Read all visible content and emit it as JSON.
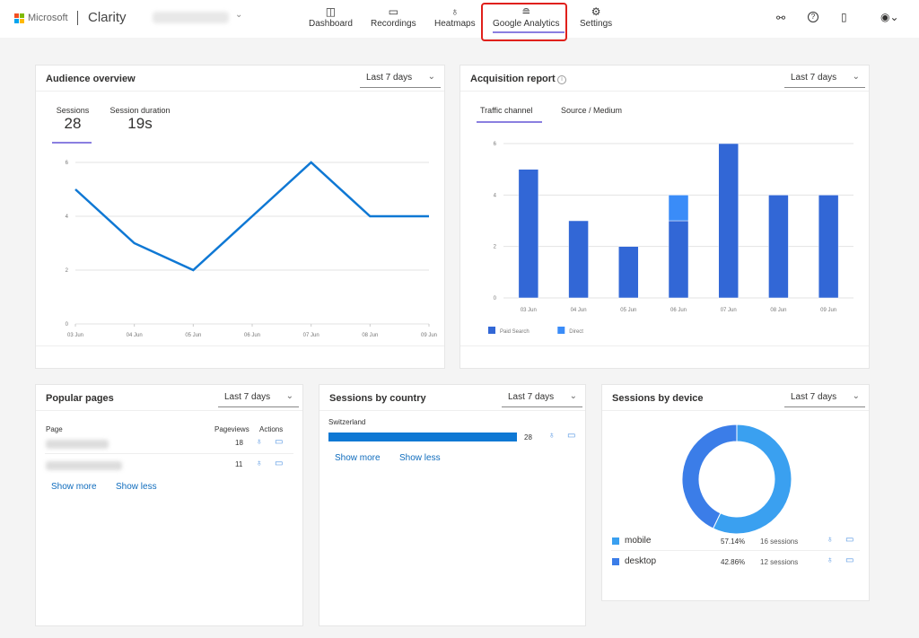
{
  "header": {
    "brand": "Microsoft",
    "product": "Clarity",
    "nav": [
      {
        "label": "Dashboard",
        "icon": "dashboard-icon"
      },
      {
        "label": "Recordings",
        "icon": "video-icon"
      },
      {
        "label": "Heatmaps",
        "icon": "flame-icon"
      },
      {
        "label": "Google Analytics",
        "icon": "stack-icon",
        "active": true
      },
      {
        "label": "Settings",
        "icon": "gear-icon"
      }
    ],
    "right_icons": [
      "share-icon",
      "help-icon",
      "document-icon",
      "account-icon"
    ]
  },
  "audience": {
    "title": "Audience overview",
    "range": "Last 7 days",
    "tabs": [
      {
        "label": "Sessions",
        "value": "28"
      },
      {
        "label": "Session duration",
        "value": "19s"
      }
    ]
  },
  "acquisition": {
    "title": "Acquisition report",
    "range": "Last 7 days",
    "tabs": [
      "Traffic channel",
      "Source / Medium"
    ]
  },
  "popular": {
    "title": "Popular pages",
    "range": "Last 7 days",
    "headers": [
      "Page",
      "Pageviews",
      "Actions"
    ],
    "rows": [
      {
        "views": "18"
      },
      {
        "views": "11"
      }
    ],
    "show_more": "Show more",
    "show_less": "Show less"
  },
  "country": {
    "title": "Sessions by country",
    "range": "Last 7 days",
    "rows": [
      {
        "name": "Switzerland",
        "value": "28"
      }
    ],
    "show_more": "Show more",
    "show_less": "Show less"
  },
  "device": {
    "title": "Sessions by device",
    "range": "Last 7 days",
    "rows": [
      {
        "name": "mobile",
        "pct": "57.14%",
        "sessions": "16 sessions",
        "color": "#3aa0f0"
      },
      {
        "name": "desktop",
        "pct": "42.86%",
        "sessions": "12 sessions",
        "color": "#3b7de8"
      }
    ]
  },
  "chart_data": [
    {
      "type": "line",
      "categories": [
        "03 Jun",
        "04 Jun",
        "05 Jun",
        "06 Jun",
        "07 Jun",
        "08 Jun",
        "09 Jun"
      ],
      "values": [
        5,
        3,
        2,
        4,
        6,
        4,
        4
      ],
      "ylim": [
        0,
        6
      ],
      "yticks": [
        "0",
        "2",
        "4",
        "6"
      ],
      "grid": true,
      "color": "#0f78d4"
    },
    {
      "type": "bar",
      "stacked": true,
      "categories": [
        "03 Jun",
        "04 Jun",
        "05 Jun",
        "06 Jun",
        "07 Jun",
        "08 Jun",
        "09 Jun"
      ],
      "series": [
        {
          "name": "Paid Search",
          "values": [
            5,
            3,
            2,
            3,
            6,
            4,
            4
          ],
          "color": "#3267d6"
        },
        {
          "name": "Direct",
          "values": [
            0,
            0,
            0,
            1,
            0,
            0,
            0
          ],
          "color": "#3a8cf8"
        }
      ],
      "ylim": [
        0,
        6
      ],
      "yticks": [
        "0",
        "2",
        "4",
        "6"
      ],
      "grid": true,
      "legend": "bottom-left"
    },
    {
      "type": "pie",
      "donut": true,
      "categories": [
        "mobile",
        "desktop"
      ],
      "values": [
        57.14,
        42.86
      ]
    }
  ]
}
